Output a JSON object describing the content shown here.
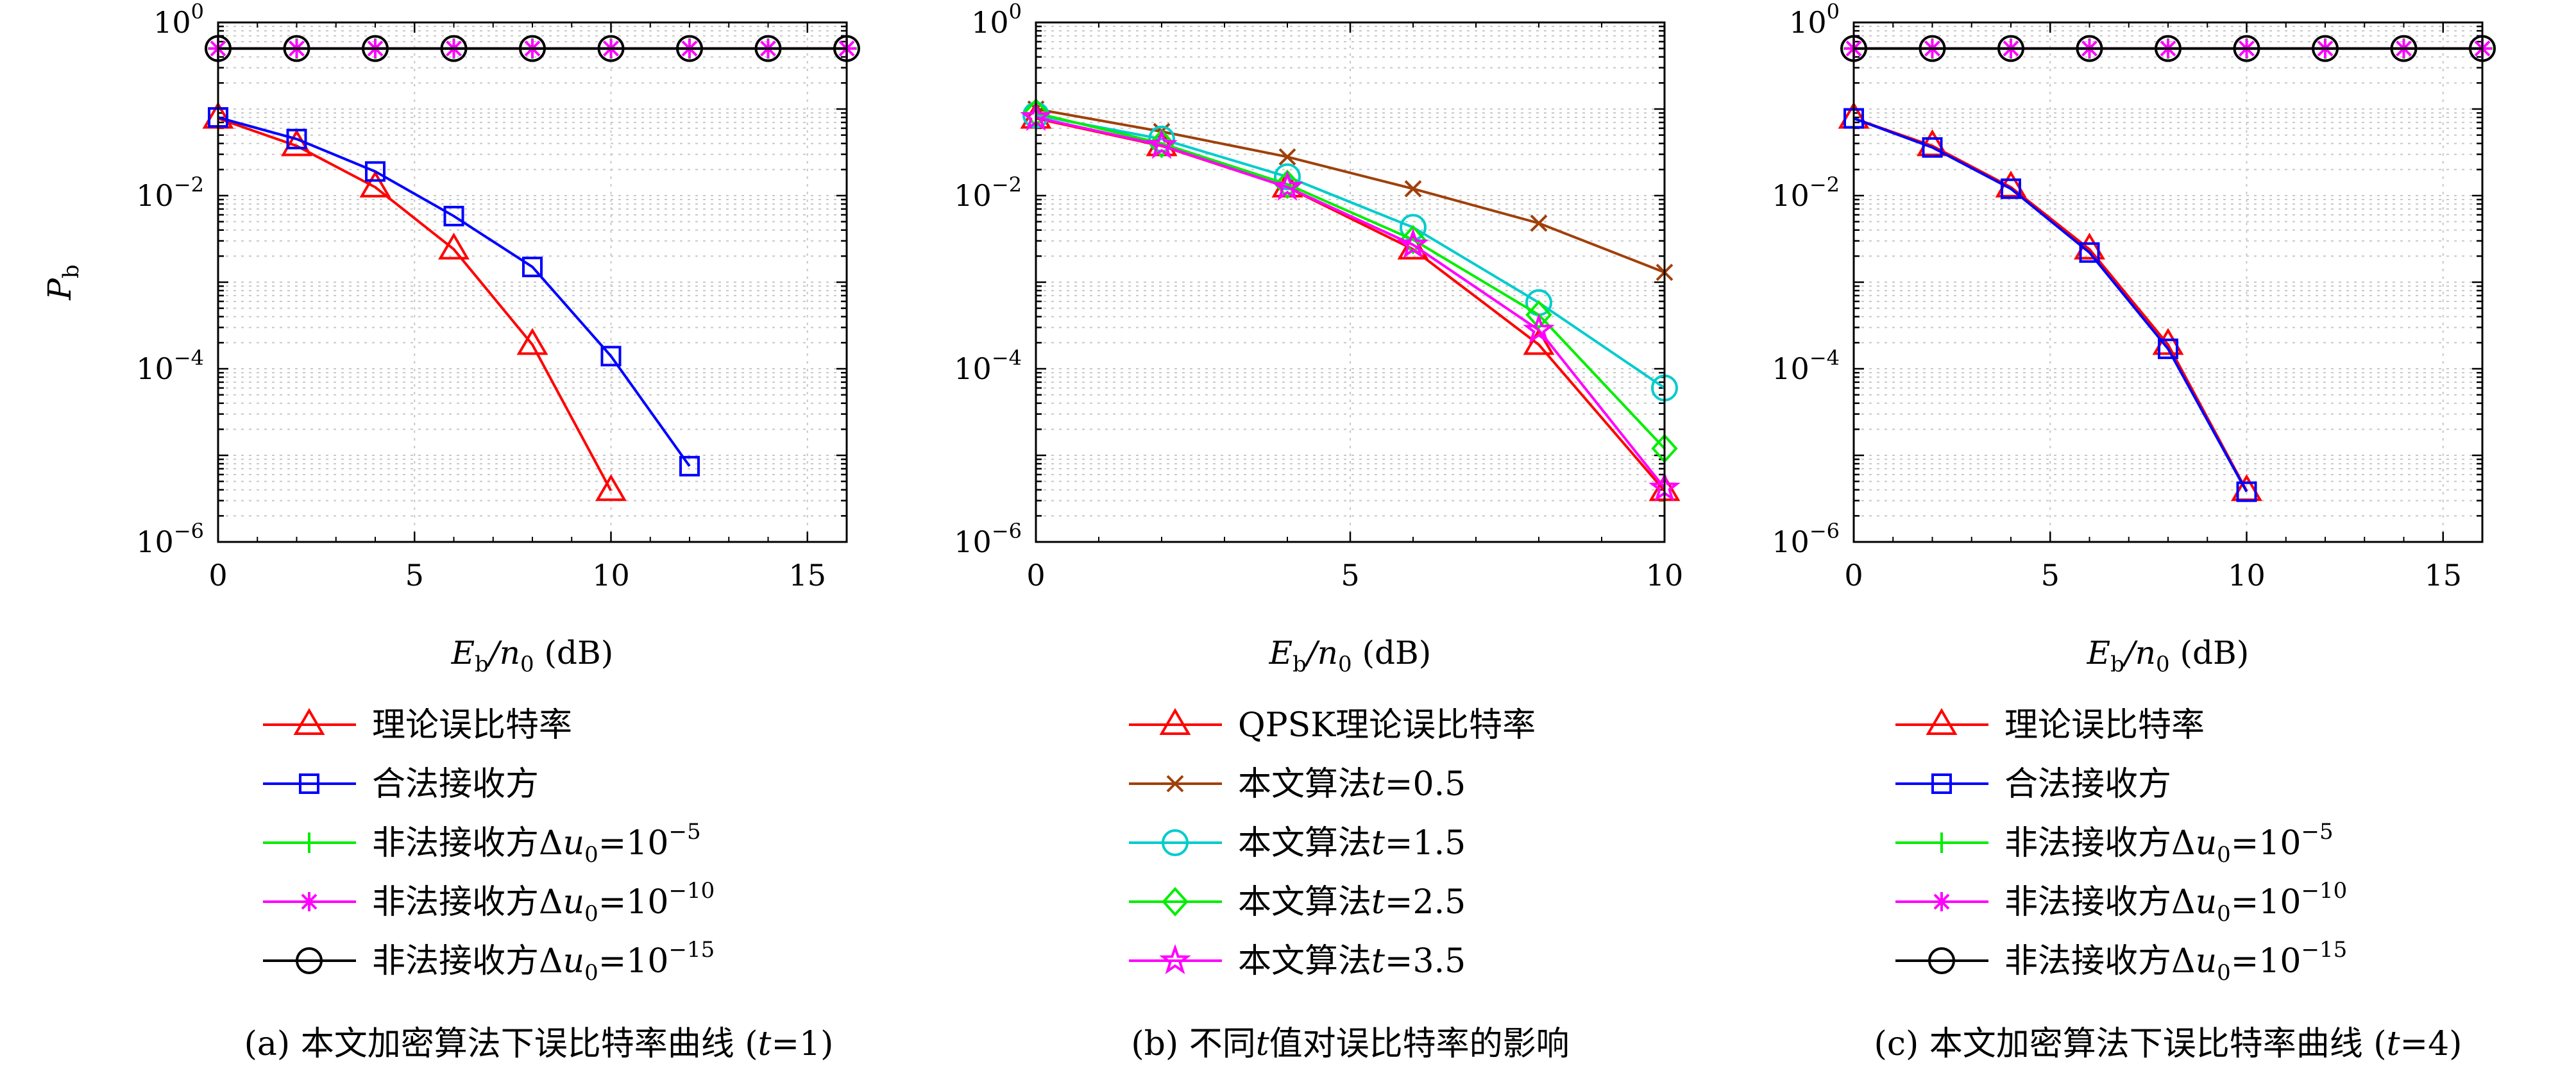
{
  "chart_data": [
    {
      "type": "line",
      "yscale": "log",
      "xlim": [
        0,
        16
      ],
      "ylim": [
        1e-06,
        1
      ],
      "xticks": [
        "0",
        "5",
        "10",
        "15"
      ],
      "yticks": [
        {
          "base": "10",
          "exp": "0"
        },
        {
          "base": "10",
          "exp": "−2"
        },
        {
          "base": "10",
          "exp": "−4"
        },
        {
          "base": "10",
          "exp": "−6"
        }
      ],
      "xlabel": {
        "main": "E",
        "sub1": "b",
        "mid": "/n",
        "sub2": "0",
        "unit": " (dB)"
      },
      "ylabel": {
        "main": "P",
        "sub": "b"
      },
      "grid": true,
      "legend_position": "below",
      "caption": "(a) 本文加密算法下误比特率曲线 (t=1)",
      "series": [
        {
          "name": "理论误比特率",
          "color": "#ff0000",
          "marker": "triangle",
          "x": [
            0,
            2,
            4,
            6,
            8,
            10
          ],
          "y": [
            0.078,
            0.0375,
            0.0125,
            0.0024,
            0.00019,
            3.9e-06
          ]
        },
        {
          "name": "合法接收方",
          "color": "#0000ff",
          "marker": "square",
          "x": [
            0,
            2,
            4,
            6,
            8,
            10,
            12
          ],
          "y": [
            0.08,
            0.045,
            0.019,
            0.0058,
            0.0015,
            0.00014,
            7.5e-06
          ]
        },
        {
          "name": "非法接收方Δu0=10−5",
          "color": "#00ee00",
          "marker": "plus",
          "x": [
            0,
            2,
            4,
            6,
            8,
            10,
            12,
            14,
            16
          ],
          "y": [
            0.5,
            0.5,
            0.5,
            0.5,
            0.5,
            0.5,
            0.5,
            0.5,
            0.5
          ]
        },
        {
          "name": "非法接收方Δu0=10−10",
          "color": "#ff00ff",
          "marker": "asterisk",
          "x": [
            0,
            2,
            4,
            6,
            8,
            10,
            12,
            14,
            16
          ],
          "y": [
            0.5,
            0.5,
            0.5,
            0.5,
            0.5,
            0.5,
            0.5,
            0.5,
            0.5
          ]
        },
        {
          "name": "非法接收方Δu0=10−15",
          "color": "#000000",
          "marker": "circle",
          "x": [
            0,
            2,
            4,
            6,
            8,
            10,
            12,
            14,
            16
          ],
          "y": [
            0.5,
            0.5,
            0.5,
            0.5,
            0.5,
            0.5,
            0.5,
            0.5,
            0.5
          ]
        }
      ],
      "legend_labels": [
        {
          "t1": "理论误比特率"
        },
        {
          "t1": "合法接收方"
        },
        {
          "t1": "非法接收方Δ",
          "it": "u",
          "sub": "0",
          "t2": "=10",
          "sup": "−5"
        },
        {
          "t1": "非法接收方Δ",
          "it": "u",
          "sub": "0",
          "t2": "=10",
          "sup": "−10"
        },
        {
          "t1": "非法接收方Δ",
          "it": "u",
          "sub": "0",
          "t2": "=10",
          "sup": "−15"
        }
      ]
    },
    {
      "type": "line",
      "yscale": "log",
      "xlim": [
        0,
        10
      ],
      "ylim": [
        1e-06,
        1
      ],
      "xticks": [
        "0",
        "5",
        "10"
      ],
      "yticks": [
        {
          "base": "10",
          "exp": "0"
        },
        {
          "base": "10",
          "exp": "−2"
        },
        {
          "base": "10",
          "exp": "−4"
        },
        {
          "base": "10",
          "exp": "−6"
        }
      ],
      "xlabel": {
        "main": "E",
        "sub1": "b",
        "mid": "/n",
        "sub2": "0",
        "unit": " (dB)"
      },
      "grid": true,
      "legend_position": "below",
      "caption": "(b) 不同t值对误比特率的影响",
      "series": [
        {
          "name": "QPSK理论误比特率",
          "color": "#ff0000",
          "marker": "triangle",
          "x": [
            0,
            2,
            4,
            6,
            8,
            10
          ],
          "y": [
            0.078,
            0.0375,
            0.0125,
            0.0024,
            0.00019,
            3.9e-06
          ]
        },
        {
          "name": "本文算法t=0.5",
          "color": "#a0400a",
          "marker": "x",
          "x": [
            0,
            2,
            4,
            6,
            8,
            10
          ],
          "y": [
            0.1,
            0.055,
            0.028,
            0.012,
            0.0048,
            0.0013
          ]
        },
        {
          "name": "本文算法t=1.5",
          "color": "#00cccc",
          "marker": "circle",
          "x": [
            0,
            2,
            4,
            6,
            8,
            10
          ],
          "y": [
            0.085,
            0.045,
            0.0165,
            0.0043,
            0.00058,
            6e-05
          ]
        },
        {
          "name": "本文算法t=2.5",
          "color": "#00ee00",
          "marker": "diamond",
          "x": [
            0,
            2,
            4,
            6,
            8,
            10
          ],
          "y": [
            0.09,
            0.04,
            0.0135,
            0.0031,
            0.00042,
            1.2e-05
          ]
        },
        {
          "name": "本文算法t=3.5",
          "color": "#ff00ff",
          "marker": "star",
          "x": [
            0,
            2,
            4,
            6,
            8,
            10
          ],
          "y": [
            0.08,
            0.038,
            0.0125,
            0.0027,
            0.00028,
            4.2e-06
          ]
        }
      ],
      "legend_labels": [
        {
          "t1": "QPSK理论误比特率"
        },
        {
          "t1": "本文算法",
          "it": "t",
          "t2": "=0.5"
        },
        {
          "t1": "本文算法",
          "it": "t",
          "t2": "=1.5"
        },
        {
          "t1": "本文算法",
          "it": "t",
          "t2": "=2.5"
        },
        {
          "t1": "本文算法",
          "it": "t",
          "t2": "=3.5"
        }
      ]
    },
    {
      "type": "line",
      "yscale": "log",
      "xlim": [
        0,
        16
      ],
      "ylim": [
        1e-06,
        1
      ],
      "xticks": [
        "0",
        "5",
        "10",
        "15"
      ],
      "yticks": [
        {
          "base": "10",
          "exp": "0"
        },
        {
          "base": "10",
          "exp": "−2"
        },
        {
          "base": "10",
          "exp": "−4"
        },
        {
          "base": "10",
          "exp": "−6"
        }
      ],
      "xlabel": {
        "main": "E",
        "sub1": "b",
        "mid": "/n",
        "sub2": "0",
        "unit": " (dB)"
      },
      "grid": true,
      "legend_position": "below",
      "caption": "(c) 本文加密算法下误比特率曲线 (t=4)",
      "series": [
        {
          "name": "理论误比特率",
          "color": "#ff0000",
          "marker": "triangle",
          "x": [
            0,
            2,
            4,
            6,
            8,
            10
          ],
          "y": [
            0.078,
            0.0375,
            0.0125,
            0.0024,
            0.00019,
            3.9e-06
          ]
        },
        {
          "name": "合法接收方",
          "color": "#0000ff",
          "marker": "square",
          "x": [
            0,
            2,
            4,
            6,
            8,
            10
          ],
          "y": [
            0.078,
            0.036,
            0.012,
            0.0022,
            0.00017,
            3.8e-06
          ]
        },
        {
          "name": "非法接收方Δu0=10−5",
          "color": "#00ee00",
          "marker": "plus",
          "x": [
            0,
            2,
            4,
            6,
            8,
            10,
            12,
            14,
            16
          ],
          "y": [
            0.5,
            0.5,
            0.5,
            0.5,
            0.5,
            0.5,
            0.5,
            0.5,
            0.5
          ]
        },
        {
          "name": "非法接收方Δu0=10−10",
          "color": "#ff00ff",
          "marker": "asterisk",
          "x": [
            0,
            2,
            4,
            6,
            8,
            10,
            12,
            14,
            16
          ],
          "y": [
            0.5,
            0.5,
            0.5,
            0.5,
            0.5,
            0.5,
            0.5,
            0.5,
            0.5
          ]
        },
        {
          "name": "非法接收方Δu0=10−15",
          "color": "#000000",
          "marker": "circle",
          "x": [
            0,
            2,
            4,
            6,
            8,
            10,
            12,
            14,
            16
          ],
          "y": [
            0.5,
            0.5,
            0.5,
            0.5,
            0.5,
            0.5,
            0.5,
            0.5,
            0.5
          ]
        }
      ],
      "legend_labels": [
        {
          "t1": "理论误比特率"
        },
        {
          "t1": "合法接收方"
        },
        {
          "t1": "非法接收方Δ",
          "it": "u",
          "sub": "0",
          "t2": "=10",
          "sup": "−5"
        },
        {
          "t1": "非法接收方Δ",
          "it": "u",
          "sub": "0",
          "t2": "=10",
          "sup": "−10"
        },
        {
          "t1": "非法接收方Δ",
          "it": "u",
          "sub": "0",
          "t2": "=10",
          "sup": "−15"
        }
      ]
    }
  ]
}
